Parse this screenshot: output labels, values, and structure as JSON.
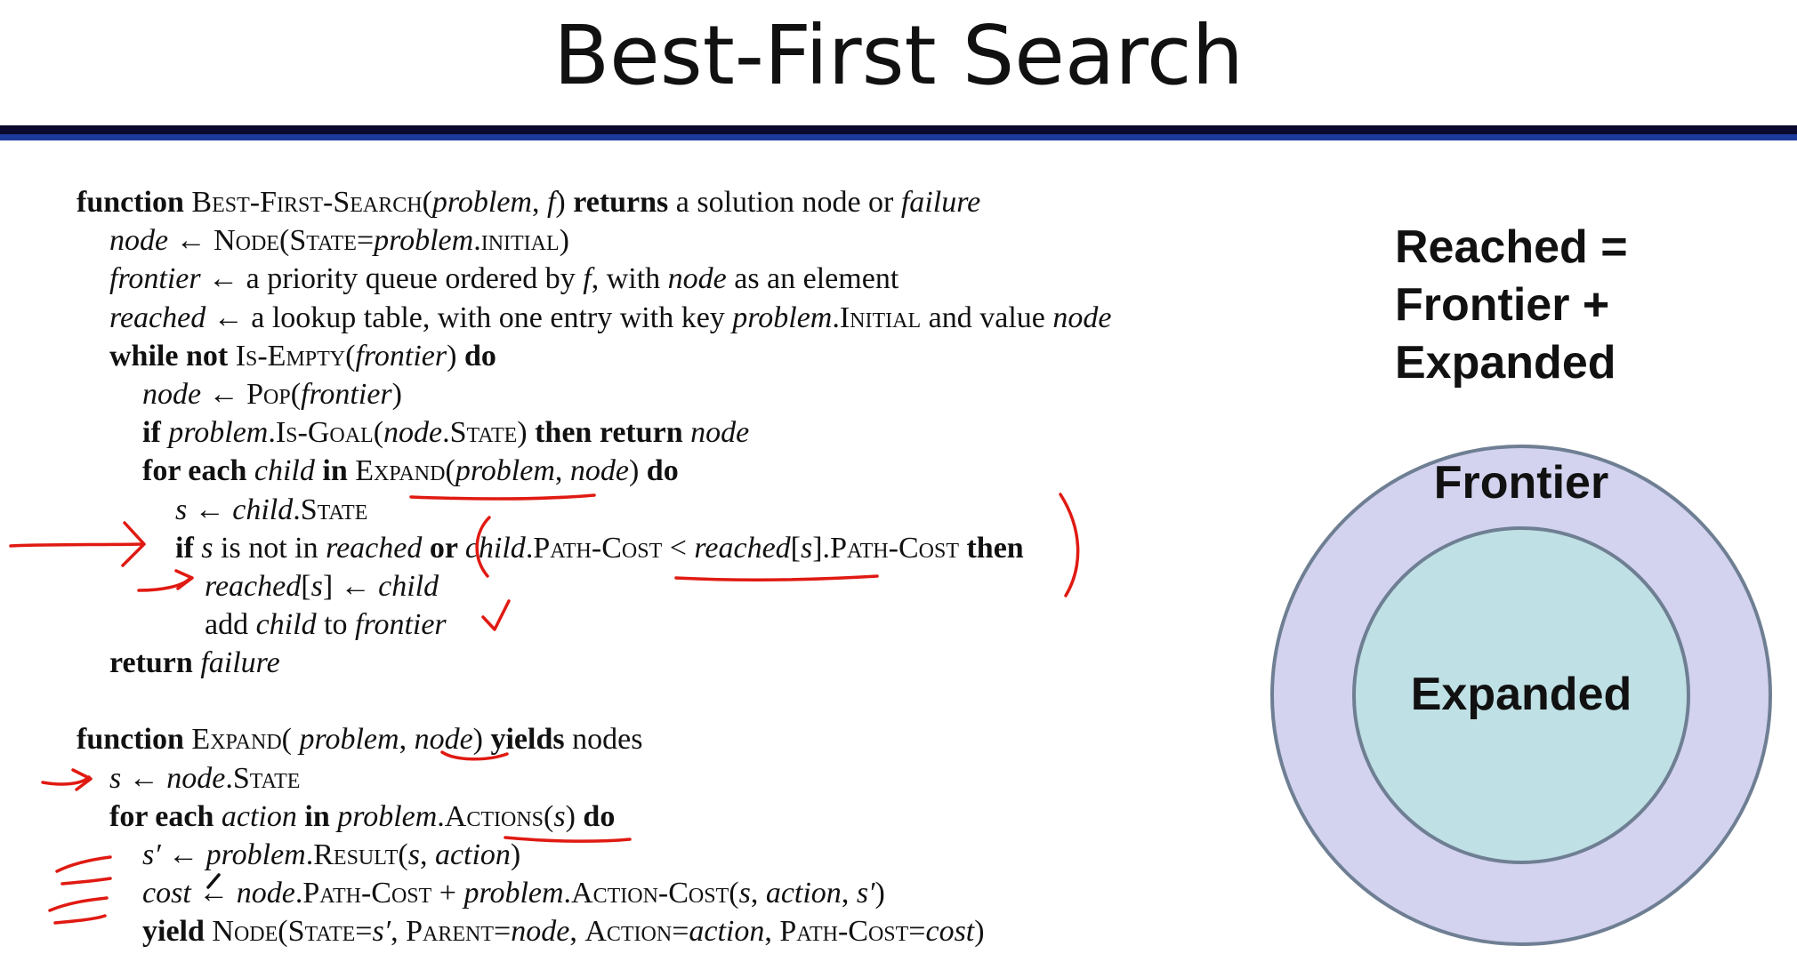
{
  "title": "Best-First Search",
  "summary": {
    "line1": "Reached =",
    "line2": "Frontier +",
    "line3": "Expanded"
  },
  "venn": {
    "outer_label": "Frontier",
    "inner_label": "Expanded",
    "outer_fill": "#d3d3ef",
    "inner_fill": "#bfe0e4",
    "stroke": "#6f7f93"
  },
  "annotation_color": "#e01a12",
  "algorithm": [
    [
      [
        "kw",
        "function "
      ],
      [
        "sc",
        "Best-First-Search"
      ],
      [
        "",
        "("
      ],
      [
        "var",
        "problem"
      ],
      [
        "",
        ", "
      ],
      [
        "var",
        "f"
      ],
      [
        "",
        ") "
      ],
      [
        "kw",
        "returns"
      ],
      [
        "",
        " a solution node or "
      ],
      [
        "var",
        "failure"
      ]
    ],
    [
      [
        "var",
        "node"
      ],
      [
        "",
        " ← "
      ],
      [
        "sc",
        "Node"
      ],
      [
        "",
        "("
      ],
      [
        "sc",
        "State"
      ],
      [
        "",
        "="
      ],
      [
        "var",
        "problem"
      ],
      [
        "",
        "."
      ],
      [
        "sc",
        "initial"
      ],
      [
        "",
        ")"
      ]
    ],
    [
      [
        "var",
        "frontier"
      ],
      [
        "",
        " ← a priority queue ordered by "
      ],
      [
        "var",
        "f"
      ],
      [
        "",
        ", with "
      ],
      [
        "var",
        "node"
      ],
      [
        "",
        " as an element"
      ]
    ],
    [
      [
        "var",
        "reached"
      ],
      [
        "",
        " ← a lookup table, with one entry with key "
      ],
      [
        "var",
        "problem"
      ],
      [
        "",
        "."
      ],
      [
        "sc",
        "Initial"
      ],
      [
        "",
        " and value "
      ],
      [
        "var",
        "node"
      ]
    ],
    [
      [
        "kw",
        "while not "
      ],
      [
        "sc",
        "Is-Empty"
      ],
      [
        "",
        "("
      ],
      [
        "var",
        "frontier"
      ],
      [
        "",
        ") "
      ],
      [
        "kw",
        "do"
      ]
    ],
    [
      [
        "var",
        "node"
      ],
      [
        "",
        " ← "
      ],
      [
        "sc",
        "Pop"
      ],
      [
        "",
        "("
      ],
      [
        "var",
        "frontier"
      ],
      [
        "",
        ")"
      ]
    ],
    [
      [
        "kw",
        "if "
      ],
      [
        "var",
        "problem"
      ],
      [
        "",
        "."
      ],
      [
        "sc",
        "Is-Goal"
      ],
      [
        "",
        "("
      ],
      [
        "var",
        "node"
      ],
      [
        "",
        "."
      ],
      [
        "sc",
        "State"
      ],
      [
        "",
        ") "
      ],
      [
        "kw",
        "then return "
      ],
      [
        "var",
        "node"
      ]
    ],
    [
      [
        "kw",
        "for each "
      ],
      [
        "var",
        "child"
      ],
      [
        "kw",
        " in "
      ],
      [
        "sc",
        "Expand"
      ],
      [
        "",
        "("
      ],
      [
        "var",
        "problem"
      ],
      [
        "",
        ", "
      ],
      [
        "var",
        "node"
      ],
      [
        "",
        ") "
      ],
      [
        "kw",
        "do"
      ]
    ],
    [
      [
        "var",
        "s"
      ],
      [
        "",
        " ← "
      ],
      [
        "var",
        "child"
      ],
      [
        "",
        "."
      ],
      [
        "sc",
        "State"
      ]
    ],
    [
      [
        "kw",
        "if "
      ],
      [
        "var",
        "s"
      ],
      [
        "",
        " is not in "
      ],
      [
        "var",
        "reached"
      ],
      [
        "kw",
        " or "
      ],
      [
        "var",
        "child"
      ],
      [
        "",
        "."
      ],
      [
        "sc",
        "Path-Cost"
      ],
      [
        "",
        " < "
      ],
      [
        "var",
        "reached"
      ],
      [
        "",
        "["
      ],
      [
        "var",
        "s"
      ],
      [
        "",
        "]."
      ],
      [
        "sc",
        "Path-Cost"
      ],
      [
        "kw",
        " then"
      ]
    ],
    [
      [
        "var",
        "reached"
      ],
      [
        "",
        "["
      ],
      [
        "var",
        "s"
      ],
      [
        "",
        "] ← "
      ],
      [
        "var",
        "child"
      ]
    ],
    [
      [
        "",
        "add "
      ],
      [
        "var",
        "child"
      ],
      [
        "",
        " to "
      ],
      [
        "var",
        "frontier"
      ]
    ],
    [
      [
        "kw",
        "return "
      ],
      [
        "var",
        "failure"
      ]
    ],
    [
      [
        "kw",
        "function "
      ],
      [
        "sc",
        "Expand"
      ],
      [
        "",
        "( "
      ],
      [
        "var",
        "problem"
      ],
      [
        "",
        ", "
      ],
      [
        "var",
        "node"
      ],
      [
        "",
        ") "
      ],
      [
        "kw",
        "yields"
      ],
      [
        "",
        " nodes"
      ]
    ],
    [
      [
        "var",
        "s"
      ],
      [
        "",
        " ← "
      ],
      [
        "var",
        "node"
      ],
      [
        "",
        "."
      ],
      [
        "sc",
        "State"
      ]
    ],
    [
      [
        "kw",
        "for each "
      ],
      [
        "var",
        "action"
      ],
      [
        "kw",
        " in "
      ],
      [
        "var",
        "problem"
      ],
      [
        "",
        "."
      ],
      [
        "sc",
        "Actions"
      ],
      [
        "",
        "("
      ],
      [
        "var",
        "s"
      ],
      [
        "",
        ") "
      ],
      [
        "kw",
        "do"
      ]
    ],
    [
      [
        "var",
        "s′"
      ],
      [
        "",
        " ← "
      ],
      [
        "var",
        "problem"
      ],
      [
        "",
        "."
      ],
      [
        "sc",
        "Result"
      ],
      [
        "",
        "("
      ],
      [
        "var",
        "s"
      ],
      [
        "",
        ", "
      ],
      [
        "var",
        "action"
      ],
      [
        "",
        ")"
      ]
    ],
    [
      [
        "var",
        "cost"
      ],
      [
        "",
        " ← "
      ],
      [
        "var",
        "node"
      ],
      [
        "",
        "."
      ],
      [
        "sc",
        "Path-Cost"
      ],
      [
        "",
        " + "
      ],
      [
        "var",
        "problem"
      ],
      [
        "",
        "."
      ],
      [
        "sc",
        "Action-Cost"
      ],
      [
        "",
        "("
      ],
      [
        "var",
        "s"
      ],
      [
        "",
        ", "
      ],
      [
        "var",
        "action"
      ],
      [
        "",
        ", "
      ],
      [
        "var",
        "s′"
      ],
      [
        "",
        ")"
      ]
    ],
    [
      [
        "kw",
        "yield "
      ],
      [
        "sc",
        "Node"
      ],
      [
        "",
        "("
      ],
      [
        "sc",
        "State"
      ],
      [
        "",
        "="
      ],
      [
        "var",
        "s′"
      ],
      [
        "",
        ", "
      ],
      [
        "sc",
        "Parent"
      ],
      [
        "",
        "="
      ],
      [
        "var",
        "node"
      ],
      [
        "",
        ", "
      ],
      [
        "sc",
        "Action"
      ],
      [
        "",
        "="
      ],
      [
        "var",
        "action"
      ],
      [
        "",
        ", "
      ],
      [
        "sc",
        "Path-Cost"
      ],
      [
        "",
        "="
      ],
      [
        "var",
        "cost"
      ],
      [
        "",
        ")"
      ]
    ]
  ]
}
